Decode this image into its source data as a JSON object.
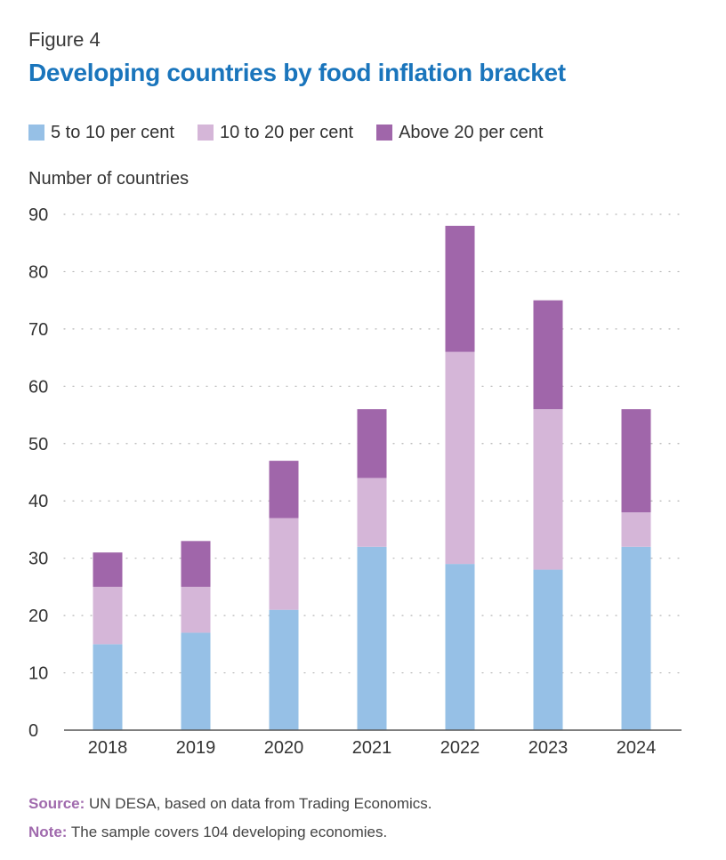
{
  "figure_label": "Figure 4",
  "footer": {
    "source_key": "Source:",
    "source_text": " UN DESA, based on data from Trading Economics.",
    "note_key": "Note:",
    "note_text": " The sample covers 104 developing economies."
  },
  "chart_data": {
    "type": "bar",
    "stacked": true,
    "title": "Developing countries by food inflation bracket",
    "ylabel": "Number of countries",
    "xlabel": "",
    "categories": [
      "2018",
      "2019",
      "2020",
      "2021",
      "2022",
      "2023",
      "2024"
    ],
    "series": [
      {
        "name": "5 to 10 per cent",
        "color": "#96c0e6",
        "values": [
          15,
          17,
          21,
          32,
          29,
          28,
          32
        ]
      },
      {
        "name": "10 to 20 per cent",
        "color": "#d5b6d8",
        "values": [
          10,
          8,
          16,
          12,
          37,
          28,
          6
        ]
      },
      {
        "name": "Above 20 per cent",
        "color": "#a066aa",
        "values": [
          6,
          8,
          10,
          12,
          22,
          19,
          18
        ]
      }
    ],
    "ylim": [
      0,
      90
    ],
    "yticks": [
      0,
      10,
      20,
      30,
      40,
      50,
      60,
      70,
      80,
      90
    ],
    "grid": true,
    "legend_position": "top-left"
  }
}
